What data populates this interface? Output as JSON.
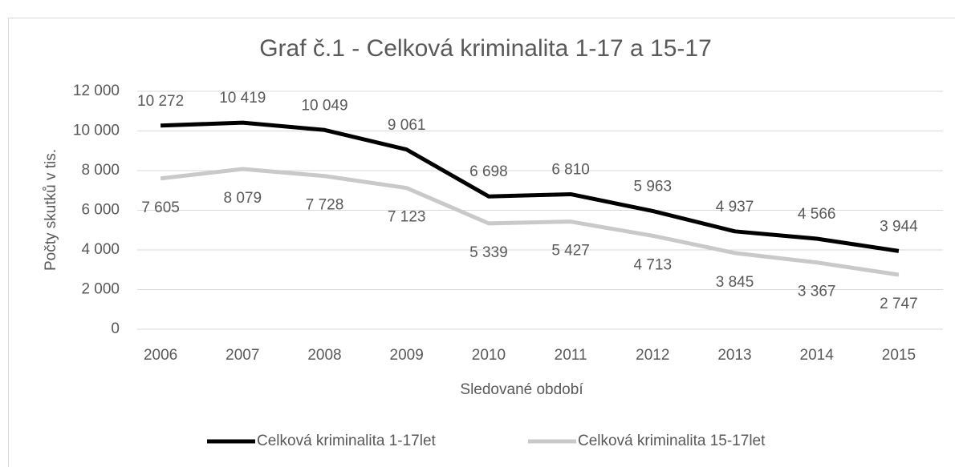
{
  "chart_data": {
    "type": "line",
    "title": "Graf č.1 - Celková kriminalita 1-17 a 15-17",
    "xlabel": "Sledované období",
    "ylabel": "Počty skutků v tis.",
    "categories": [
      "2006",
      "2007",
      "2008",
      "2009",
      "2010",
      "2011",
      "2012",
      "2013",
      "2014",
      "2015"
    ],
    "series": [
      {
        "name": "Celková kriminalita 1-17let",
        "color": "#000000",
        "values": [
          10272,
          10419,
          10049,
          9061,
          6698,
          6810,
          5963,
          4937,
          4566,
          3944
        ],
        "value_labels": [
          "10 272",
          "10 419",
          "10 049",
          "9 061",
          "6 698",
          "6 810",
          "5 963",
          "4 937",
          "4 566",
          "3 944"
        ]
      },
      {
        "name": "Celková kriminalita 15-17let",
        "color": "#c9c9c9",
        "values": [
          7605,
          8079,
          7728,
          7123,
          5339,
          5427,
          4713,
          3845,
          3367,
          2747
        ],
        "value_labels": [
          "7 605",
          "8 079",
          "7 728",
          "7 123",
          "5 339",
          "5 427",
          "4 713",
          "3 845",
          "3 367",
          "2 747"
        ]
      }
    ],
    "ylim": [
      0,
      12000
    ],
    "yticks": [
      0,
      {
        "value": 2000,
        "label": "2 000"
      },
      {
        "value": 4000,
        "label": "4 000"
      },
      {
        "value": 6000,
        "label": "6 000"
      },
      {
        "value": 8000,
        "label": "8 000"
      },
      {
        "value": 10000,
        "label": "10 000"
      },
      {
        "value": 12000,
        "label": "12 000"
      }
    ],
    "grid": true,
    "legend": "bottom"
  }
}
